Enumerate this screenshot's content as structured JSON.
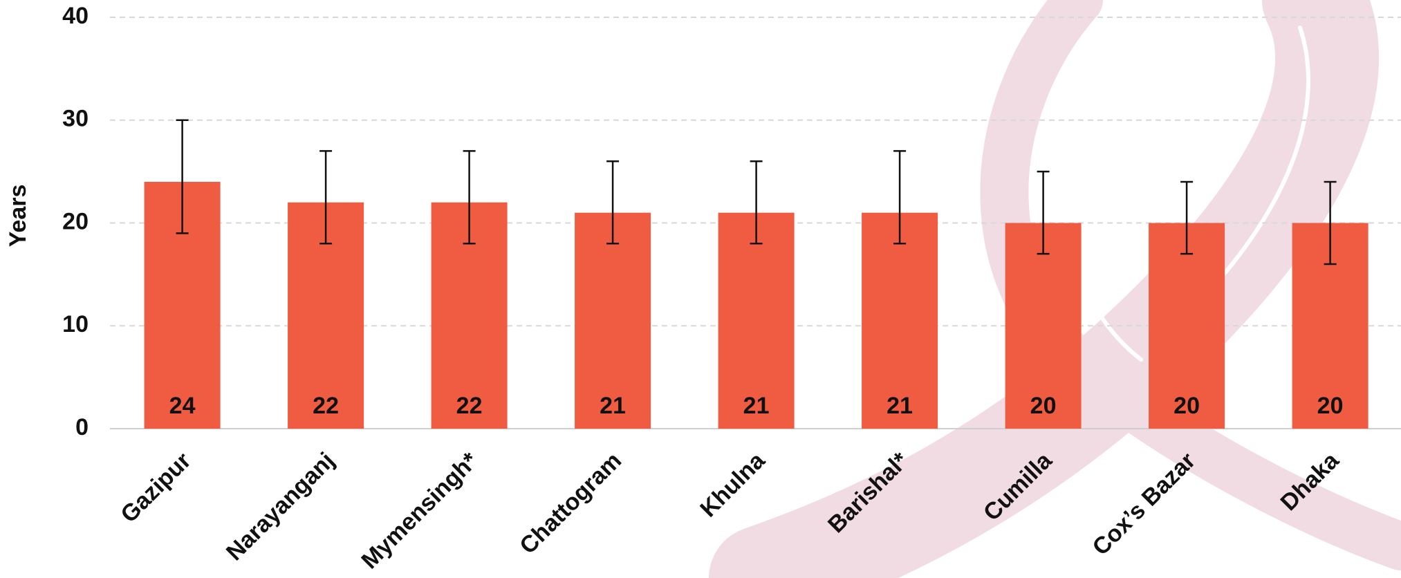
{
  "chart_data": {
    "type": "bar",
    "y_label": "Years",
    "categories": [
      "Gazipur",
      "Narayanganj",
      "Mymensingh*",
      "Chattogram",
      "Khulna",
      "Barishal*",
      "Cumilla",
      "Cox’s Bazar",
      "Dhaka"
    ],
    "values": [
      24,
      22,
      22,
      21,
      21,
      21,
      20,
      20,
      20
    ],
    "lower": [
      19,
      18,
      18,
      18,
      18,
      18,
      17,
      17,
      16
    ],
    "upper": [
      30,
      27,
      27,
      26,
      26,
      27,
      25,
      24,
      24
    ],
    "color": "#f05c42",
    "ylim": [
      0,
      40
    ],
    "yticks": [
      0,
      10,
      20,
      30,
      40
    ],
    "grid": true
  }
}
